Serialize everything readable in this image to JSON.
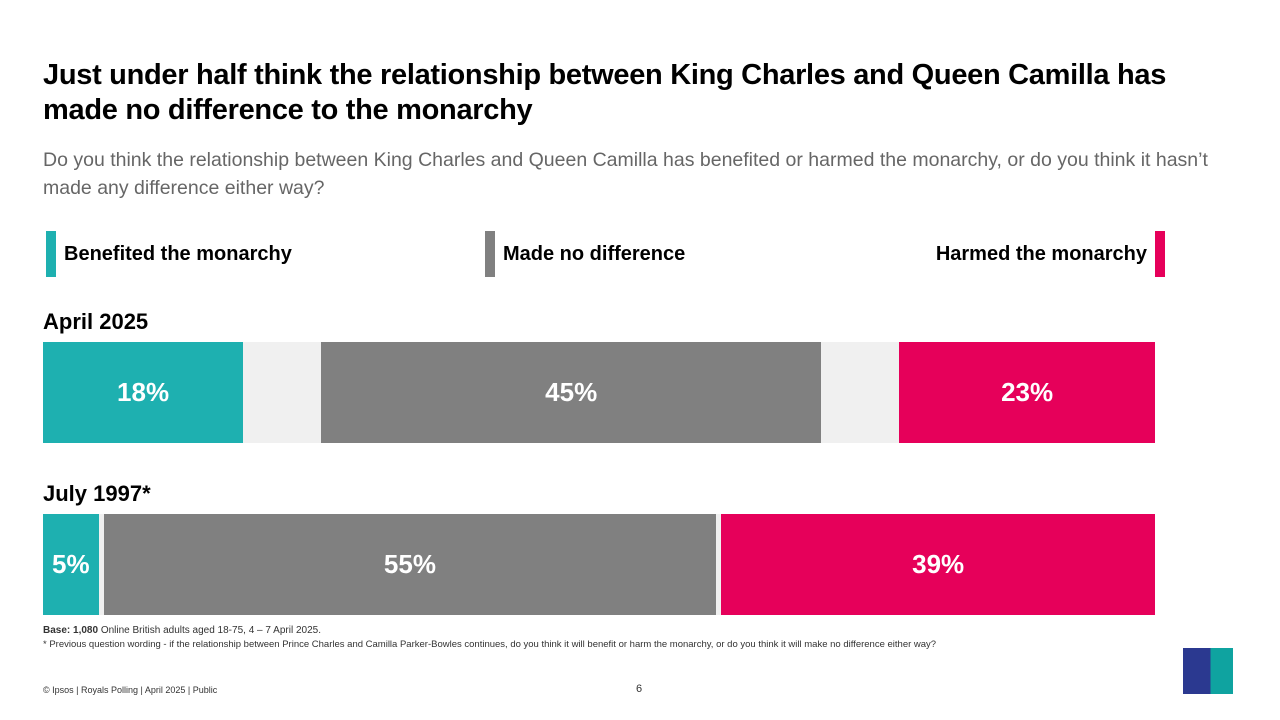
{
  "title": "Just under half think the relationship between King Charles and Queen Camilla has made no difference to the monarchy",
  "subtitle": "Do you think the relationship between King Charles and Queen Camilla has benefited or harmed the monarchy, or do you think it hasn’t made any difference either way?",
  "colors": {
    "benefited": "#1eb0b0",
    "no_difference": "#808080",
    "harmed": "#e6005a",
    "dont_know": "#f0f0f0"
  },
  "chart_data": {
    "type": "bar",
    "orientation": "horizontal-stacked",
    "legend": {
      "placement": "top",
      "entries": [
        "Benefited the monarchy",
        "Made no difference",
        "Harmed the monarchy"
      ]
    },
    "categories": [
      "April 2025",
      "July 1997*"
    ],
    "series": [
      {
        "name": "Benefited the monarchy",
        "values": [
          18,
          5
        ],
        "labels": [
          "18%",
          "5%"
        ]
      },
      {
        "name": "Made no difference",
        "values": [
          45,
          55
        ],
        "labels": [
          "45%",
          "55%"
        ]
      },
      {
        "name": "Harmed the monarchy",
        "values": [
          23,
          39
        ],
        "labels": [
          "23%",
          "39%"
        ]
      }
    ],
    "xlim": [
      0,
      100
    ],
    "grid": false
  },
  "footnote": {
    "base_label": "Base: 1,080",
    "base_text": " Online British adults aged 18-75, 4 – 7 April 2025.",
    "note": "* Previous question wording -  if the relationship between Prince Charles and Camilla Parker-Bowles continues, do you think it will benefit or harm the monarchy, or do you think it will make no difference either way?"
  },
  "footer": {
    "source": "© Ipsos | Royals Polling | April 2025 | Public",
    "page": "6",
    "logo": "Ipsos"
  }
}
